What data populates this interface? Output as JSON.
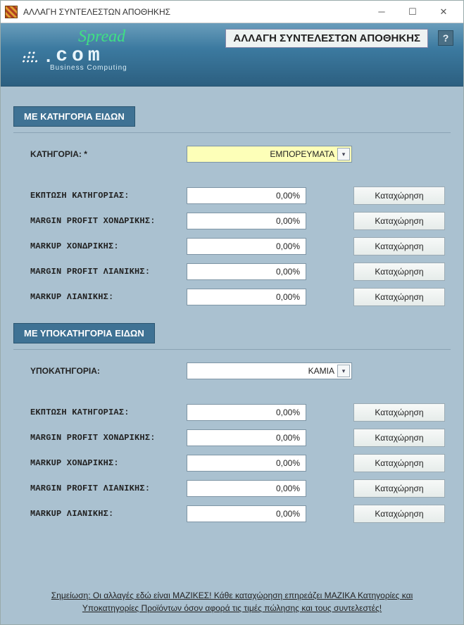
{
  "window": {
    "title": "ΑΛΛΑΓΗ ΣΥΝΤΕΛΕΣΤΩΝ ΑΠΟΘΗΚΗΣ"
  },
  "header": {
    "page_title": "ΑΛΛΑΓΗ ΣΥΝΤΕΛΕΣΤΩΝ ΑΠΟΘΗΚΗΣ",
    "help_label": "?",
    "brand_spread": "Spread",
    "brand_dot": ".",
    "brand_com": "com",
    "brand_sub": "Business Computing"
  },
  "section1": {
    "title": "ΜΕ ΚΑΤΗΓΟΡΙΑ ΕΙΔΩΝ",
    "selector_label": "ΚΑΤΗΓΟΡΙΑ: *",
    "selector_value": "ΕΜΠΟΡΕΥΜΑΤΑ",
    "rows": [
      {
        "label": "ΕΚΠΤΩΣΗ ΚΑΤΗΓΟΡΙΑΣ:",
        "value": "0,00%",
        "button": "Καταχώρηση"
      },
      {
        "label": "MARGIN PROFIT ΧΟΝΔΡΙΚΗΣ:",
        "value": "0,00%",
        "button": "Καταχώρηση"
      },
      {
        "label": "MARKUP ΧΟΝΔΡΙΚΗΣ:",
        "value": "0,00%",
        "button": "Καταχώρηση"
      },
      {
        "label": "MARGIN PROFIT ΛΙΑΝΙΚΗΣ:",
        "value": "0,00%",
        "button": "Καταχώρηση"
      },
      {
        "label": "MARKUP ΛΙΑΝΙΚΗΣ:",
        "value": "0,00%",
        "button": "Καταχώρηση"
      }
    ]
  },
  "section2": {
    "title": "ΜΕ ΥΠΟΚΑΤΗΓΟΡΙΑ ΕΙΔΩΝ",
    "selector_label": "ΥΠΟΚΑΤΗΓΟΡΙΑ:",
    "selector_value": "KAMIA",
    "rows": [
      {
        "label": "ΕΚΠΤΩΣΗ ΚΑΤΗΓΟΡΙΑΣ:",
        "value": "0,00%",
        "button": "Καταχώρηση"
      },
      {
        "label": "MARGIN PROFIT ΧΟΝΔΡΙΚΗΣ:",
        "value": "0,00%",
        "button": "Καταχώρηση"
      },
      {
        "label": "MARKUP ΧΟΝΔΡΙΚΗΣ:",
        "value": "0,00%",
        "button": "Καταχώρηση"
      },
      {
        "label": "MARGIN PROFIT ΛΙΑΝΙΚΗΣ:",
        "value": "0,00%",
        "button": "Καταχώρηση"
      },
      {
        "label": "MARKUP ΛΙΑΝΙΚΗΣ:",
        "value": "0,00%",
        "button": "Καταχώρηση"
      }
    ]
  },
  "footer": {
    "line1": "Σημείωση: Οι αλλαγές εδώ είναι ΜΑΖΙΚΕΣ! Κάθε καταχώρηση επηρεάζει ΜΑΖΙΚΑ Κατηγορίες και",
    "line2": "Υποκατηγορίες Προϊόντων όσον αφορά τις τιμές πώλησης και τους συντελεστές!"
  },
  "colors": {
    "window_bg": "#aac1d0",
    "header_grad_top": "#6a9dbb",
    "header_grad_bottom": "#2c5f80",
    "section_header_bg": "#3f7294",
    "highlight_input": "#fdffb8",
    "input_border": "#7e95a5"
  }
}
